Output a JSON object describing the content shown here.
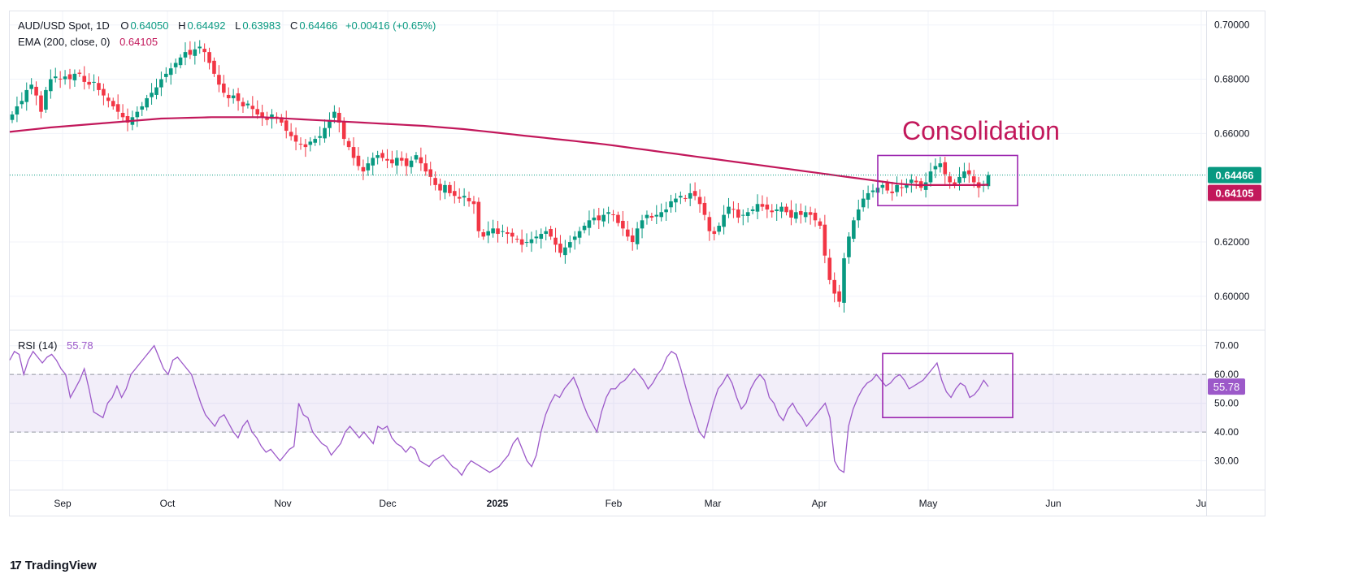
{
  "legend": {
    "symbol": "AUD/USD Spot, 1D",
    "open_label": "O",
    "open": "0.64050",
    "high_label": "H",
    "high": "0.64492",
    "low_label": "L",
    "low": "0.63983",
    "close_label": "C",
    "close": "0.64466",
    "change": "+0.00416 (+0.65%)",
    "ema_label": "EMA (200, close, 0)",
    "ema_value": "0.64105",
    "rsi_label": "RSI (14)",
    "rsi_value": "55.78"
  },
  "brand": {
    "name": "TradingView",
    "logo": "17"
  },
  "colors": {
    "up": "#089981",
    "down": "#f23645",
    "ema": "#c2185b",
    "rsi": "#9c59c9",
    "box": "#9c27b0",
    "annotation": "#c2185b"
  },
  "chart_data": [
    {
      "type": "candlestick",
      "title": "AUD/USD Spot, 1D",
      "ylim": [
        0.588,
        0.705
      ],
      "y_ticks": [
        "0.70000",
        "0.68000",
        "0.66000",
        "0.62000",
        "0.60000"
      ],
      "y_tick_values": [
        0.7,
        0.68,
        0.66,
        0.62,
        0.6
      ],
      "x_ticks": [
        "Sep",
        "Oct",
        "Nov",
        "Dec",
        "2025",
        "Feb",
        "Mar",
        "Apr",
        "May",
        "Jun",
        "Ju"
      ],
      "last_price_label": "0.64466",
      "last_price": 0.64466,
      "ema_label": "0.64105",
      "ema_value": 0.64105,
      "annotation": "Consolidation",
      "close_series": [
        0.667,
        0.67,
        0.672,
        0.676,
        0.678,
        0.674,
        0.668,
        0.676,
        0.68,
        0.681,
        0.68,
        0.681,
        0.68,
        0.682,
        0.682,
        0.679,
        0.678,
        0.679,
        0.676,
        0.674,
        0.672,
        0.67,
        0.668,
        0.666,
        0.664,
        0.666,
        0.668,
        0.67,
        0.673,
        0.675,
        0.677,
        0.68,
        0.682,
        0.684,
        0.686,
        0.688,
        0.69,
        0.689,
        0.691,
        0.692,
        0.69,
        0.686,
        0.682,
        0.678,
        0.675,
        0.673,
        0.674,
        0.672,
        0.67,
        0.671,
        0.669,
        0.667,
        0.666,
        0.665,
        0.667,
        0.666,
        0.664,
        0.661,
        0.659,
        0.657,
        0.656,
        0.655,
        0.657,
        0.658,
        0.659,
        0.662,
        0.665,
        0.668,
        0.664,
        0.658,
        0.655,
        0.651,
        0.648,
        0.646,
        0.649,
        0.651,
        0.652,
        0.651,
        0.65,
        0.649,
        0.651,
        0.65,
        0.648,
        0.65,
        0.652,
        0.649,
        0.646,
        0.644,
        0.641,
        0.639,
        0.641,
        0.638,
        0.637,
        0.636,
        0.637,
        0.635,
        0.634,
        0.624,
        0.622,
        0.624,
        0.625,
        0.623,
        0.624,
        0.623,
        0.622,
        0.621,
        0.619,
        0.62,
        0.621,
        0.622,
        0.623,
        0.624,
        0.622,
        0.619,
        0.616,
        0.618,
        0.62,
        0.622,
        0.624,
        0.626,
        0.628,
        0.629,
        0.628,
        0.63,
        0.631,
        0.63,
        0.627,
        0.625,
        0.622,
        0.62,
        0.625,
        0.628,
        0.63,
        0.629,
        0.63,
        0.631,
        0.632,
        0.635,
        0.636,
        0.637,
        0.636,
        0.638,
        0.637,
        0.634,
        0.63,
        0.624,
        0.623,
        0.626,
        0.63,
        0.633,
        0.632,
        0.629,
        0.63,
        0.631,
        0.632,
        0.634,
        0.633,
        0.632,
        0.631,
        0.632,
        0.633,
        0.631,
        0.629,
        0.631,
        0.63,
        0.631,
        0.63,
        0.628,
        0.626,
        0.615,
        0.606,
        0.601,
        0.598,
        0.614,
        0.622,
        0.628,
        0.632,
        0.636,
        0.638,
        0.639,
        0.64,
        0.641,
        0.639,
        0.638,
        0.641,
        0.64,
        0.641,
        0.643,
        0.642,
        0.64,
        0.642,
        0.646,
        0.648,
        0.649,
        0.645,
        0.642,
        0.641,
        0.644,
        0.646,
        0.645,
        0.642,
        0.64,
        0.641,
        0.6447
      ],
      "ema_series": [
        0.6606,
        0.661,
        0.6614,
        0.6618,
        0.6622,
        0.6625,
        0.6628,
        0.6631,
        0.6634,
        0.6637,
        0.664,
        0.6643,
        0.6646,
        0.6649,
        0.6652,
        0.6655,
        0.6656,
        0.6657,
        0.6658,
        0.6659,
        0.666,
        0.666,
        0.666,
        0.666,
        0.666,
        0.666,
        0.6658,
        0.6656,
        0.6654,
        0.6652,
        0.665,
        0.6648,
        0.6646,
        0.6644,
        0.6642,
        0.664,
        0.6638,
        0.6636,
        0.6634,
        0.6632,
        0.663,
        0.6628,
        0.6625,
        0.6622,
        0.6619,
        0.6616,
        0.6612,
        0.6608,
        0.6604,
        0.66,
        0.6596,
        0.6592,
        0.6588,
        0.6584,
        0.658,
        0.6576,
        0.6572,
        0.6568,
        0.6564,
        0.656,
        0.6555,
        0.655,
        0.6545,
        0.654,
        0.6535,
        0.653,
        0.6525,
        0.652,
        0.6515,
        0.651,
        0.6505,
        0.65,
        0.6495,
        0.649,
        0.6485,
        0.648,
        0.6475,
        0.647,
        0.6465,
        0.646,
        0.6455,
        0.645,
        0.6445,
        0.644,
        0.6435,
        0.643,
        0.6425,
        0.642,
        0.6415,
        0.6412,
        0.641,
        0.641,
        0.641,
        0.641,
        0.641,
        0.641,
        0.641,
        0.6411
      ],
      "volume_box": {
        "start_index": 182,
        "end_index": 206,
        "y_range": [
          0.6355,
          0.651
        ]
      }
    },
    {
      "type": "line",
      "title": "RSI (14)",
      "ylim": [
        20,
        75
      ],
      "y_ticks": [
        "70.00",
        "60.00",
        "50.00",
        "40.00",
        "30.00"
      ],
      "y_tick_values": [
        70,
        60,
        50,
        40,
        30
      ],
      "bands": [
        40,
        60
      ],
      "last_value_label": "55.78",
      "last_value": 55.78,
      "values": [
        65,
        68,
        67,
        60,
        65,
        68,
        66,
        64,
        66,
        67,
        65,
        62,
        60,
        52,
        55,
        58,
        62,
        55,
        47,
        46,
        45,
        50,
        52,
        56,
        52,
        55,
        60,
        62,
        64,
        66,
        68,
        70,
        66,
        62,
        60,
        65,
        66,
        64,
        62,
        60,
        55,
        50,
        46,
        44,
        42,
        45,
        46,
        43,
        40,
        38,
        42,
        44,
        40,
        38,
        35,
        33,
        34,
        32,
        30,
        32,
        34,
        35,
        50,
        46,
        45,
        40,
        38,
        36,
        35,
        32,
        34,
        36,
        40,
        42,
        40,
        38,
        40,
        38,
        36,
        42,
        41,
        42,
        38,
        36,
        35,
        33,
        35,
        34,
        30,
        29,
        28,
        30,
        31,
        32,
        30,
        28,
        27,
        25,
        28,
        30,
        29,
        28,
        27,
        26,
        27,
        28,
        30,
        32,
        36,
        38,
        34,
        30,
        28,
        32,
        40,
        46,
        50,
        53,
        52,
        55,
        57,
        59,
        55,
        50,
        46,
        43,
        40,
        47,
        52,
        55,
        55,
        57,
        58,
        60,
        62,
        60,
        58,
        55,
        57,
        60,
        62,
        66,
        68,
        67,
        62,
        56,
        50,
        45,
        40,
        38,
        44,
        50,
        55,
        57,
        60,
        57,
        52,
        48,
        50,
        55,
        58,
        60,
        58,
        52,
        50,
        46,
        44,
        48,
        50,
        47,
        45,
        42,
        44,
        46,
        48,
        50,
        45,
        30,
        27,
        26,
        42,
        48,
        52,
        55,
        57,
        58,
        60,
        58,
        56,
        57,
        59,
        60,
        58,
        55,
        56,
        57,
        58,
        60,
        62,
        64,
        58,
        54,
        52,
        55,
        57,
        56,
        52,
        53,
        55,
        58,
        55.78
      ],
      "box": {
        "start_index": 182,
        "end_index": 206,
        "y_range": [
          47,
          67
        ]
      }
    }
  ]
}
